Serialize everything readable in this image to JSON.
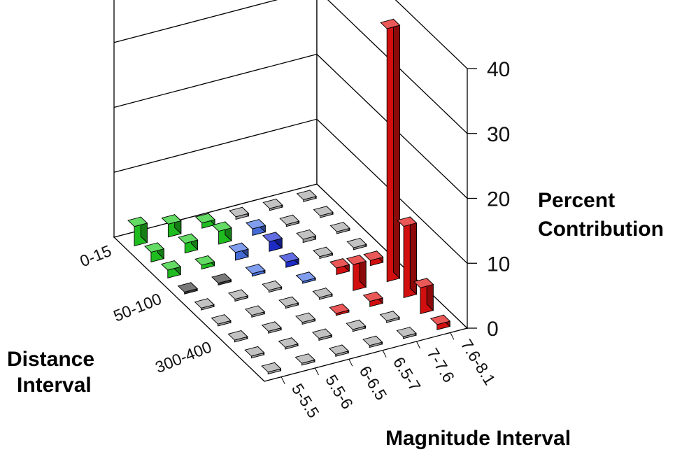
{
  "chart_data": {
    "type": "bar3d",
    "title": "",
    "magnitude_axis_label": "Magnitude Interval",
    "distance_axis_label": [
      "Distance",
      "Interval"
    ],
    "z_axis_label": [
      "Percent",
      "Contribution"
    ],
    "magnitude_intervals": [
      "5-5.5",
      "5.5-6",
      "6-6.5",
      "6.5-7",
      "7-7.6",
      "7.6-8.1"
    ],
    "distance_labels_shown": [
      "0-15",
      "50-100",
      "300-400"
    ],
    "distance_rows": 9,
    "z_ticks": [
      "0",
      "10",
      "20",
      "30",
      "40"
    ],
    "zlim": [
      0,
      40
    ],
    "grid": true,
    "colors": {
      "green": "#22cc22",
      "blue": "#4a73e6",
      "darkblue": "#1f2fd6",
      "red": "#e31010",
      "gray": "#a8a8a8",
      "dark": "#404040"
    },
    "bars": [
      {
        "mag": 0,
        "dist": 0,
        "value": 3.0,
        "color": "green"
      },
      {
        "mag": 0,
        "dist": 1,
        "value": 1.5,
        "color": "green"
      },
      {
        "mag": 0,
        "dist": 2,
        "value": 1.2,
        "color": "green"
      },
      {
        "mag": 0,
        "dist": 3,
        "value": 0.3,
        "color": "dark"
      },
      {
        "mag": 0,
        "dist": 4,
        "value": 0.3,
        "color": "gray"
      },
      {
        "mag": 0,
        "dist": 5,
        "value": 0.3,
        "color": "gray"
      },
      {
        "mag": 0,
        "dist": 6,
        "value": 0.3,
        "color": "gray"
      },
      {
        "mag": 0,
        "dist": 7,
        "value": 0.3,
        "color": "gray"
      },
      {
        "mag": 0,
        "dist": 8,
        "value": 0.3,
        "color": "gray"
      },
      {
        "mag": 1,
        "dist": 0,
        "value": 2.0,
        "color": "green"
      },
      {
        "mag": 1,
        "dist": 1,
        "value": 1.5,
        "color": "green"
      },
      {
        "mag": 1,
        "dist": 2,
        "value": 0.6,
        "color": "green"
      },
      {
        "mag": 1,
        "dist": 3,
        "value": 0.3,
        "color": "dark"
      },
      {
        "mag": 1,
        "dist": 4,
        "value": 0.3,
        "color": "gray"
      },
      {
        "mag": 1,
        "dist": 5,
        "value": 0.3,
        "color": "gray"
      },
      {
        "mag": 1,
        "dist": 6,
        "value": 0.3,
        "color": "gray"
      },
      {
        "mag": 1,
        "dist": 7,
        "value": 0.3,
        "color": "gray"
      },
      {
        "mag": 1,
        "dist": 8,
        "value": 0.3,
        "color": "gray"
      },
      {
        "mag": 2,
        "dist": 0,
        "value": 0.8,
        "color": "green"
      },
      {
        "mag": 2,
        "dist": 1,
        "value": 2.0,
        "color": "green"
      },
      {
        "mag": 2,
        "dist": 2,
        "value": 1.2,
        "color": "blue"
      },
      {
        "mag": 2,
        "dist": 3,
        "value": 0.4,
        "color": "blue"
      },
      {
        "mag": 2,
        "dist": 4,
        "value": 0.3,
        "color": "gray"
      },
      {
        "mag": 2,
        "dist": 5,
        "value": 0.3,
        "color": "gray"
      },
      {
        "mag": 2,
        "dist": 6,
        "value": 0.3,
        "color": "gray"
      },
      {
        "mag": 2,
        "dist": 7,
        "value": 0.3,
        "color": "gray"
      },
      {
        "mag": 2,
        "dist": 8,
        "value": 0.3,
        "color": "gray"
      },
      {
        "mag": 3,
        "dist": 0,
        "value": 0.4,
        "color": "gray"
      },
      {
        "mag": 3,
        "dist": 1,
        "value": 1.0,
        "color": "blue"
      },
      {
        "mag": 3,
        "dist": 2,
        "value": 1.5,
        "color": "darkblue"
      },
      {
        "mag": 3,
        "dist": 3,
        "value": 0.8,
        "color": "darkblue"
      },
      {
        "mag": 3,
        "dist": 4,
        "value": 0.3,
        "color": "blue"
      },
      {
        "mag": 3,
        "dist": 5,
        "value": 0.3,
        "color": "gray"
      },
      {
        "mag": 3,
        "dist": 6,
        "value": 0.3,
        "color": "red"
      },
      {
        "mag": 3,
        "dist": 7,
        "value": 0.3,
        "color": "gray"
      },
      {
        "mag": 3,
        "dist": 8,
        "value": 0.3,
        "color": "gray"
      },
      {
        "mag": 4,
        "dist": 0,
        "value": 0.3,
        "color": "gray"
      },
      {
        "mag": 4,
        "dist": 1,
        "value": 0.3,
        "color": "gray"
      },
      {
        "mag": 4,
        "dist": 2,
        "value": 0.5,
        "color": "gray"
      },
      {
        "mag": 4,
        "dist": 3,
        "value": 0.3,
        "color": "gray"
      },
      {
        "mag": 4,
        "dist": 4,
        "value": 1.0,
        "color": "red"
      },
      {
        "mag": 4,
        "dist": 5,
        "value": 4.0,
        "color": "red"
      },
      {
        "mag": 4,
        "dist": 6,
        "value": 0.8,
        "color": "red"
      },
      {
        "mag": 4,
        "dist": 7,
        "value": 0.3,
        "color": "gray"
      },
      {
        "mag": 4,
        "dist": 8,
        "value": 0.3,
        "color": "gray"
      },
      {
        "mag": 5,
        "dist": 0,
        "value": 0.3,
        "color": "gray"
      },
      {
        "mag": 5,
        "dist": 1,
        "value": 0.3,
        "color": "gray"
      },
      {
        "mag": 5,
        "dist": 2,
        "value": 0.3,
        "color": "gray"
      },
      {
        "mag": 5,
        "dist": 3,
        "value": 0.3,
        "color": "gray"
      },
      {
        "mag": 5,
        "dist": 4,
        "value": 0.8,
        "color": "red"
      },
      {
        "mag": 5,
        "dist": 5,
        "value": 39.0,
        "color": "red"
      },
      {
        "mag": 5,
        "dist": 6,
        "value": 11.0,
        "color": "red"
      },
      {
        "mag": 5,
        "dist": 7,
        "value": 4.0,
        "color": "red"
      },
      {
        "mag": 5,
        "dist": 8,
        "value": 0.8,
        "color": "red"
      }
    ]
  }
}
